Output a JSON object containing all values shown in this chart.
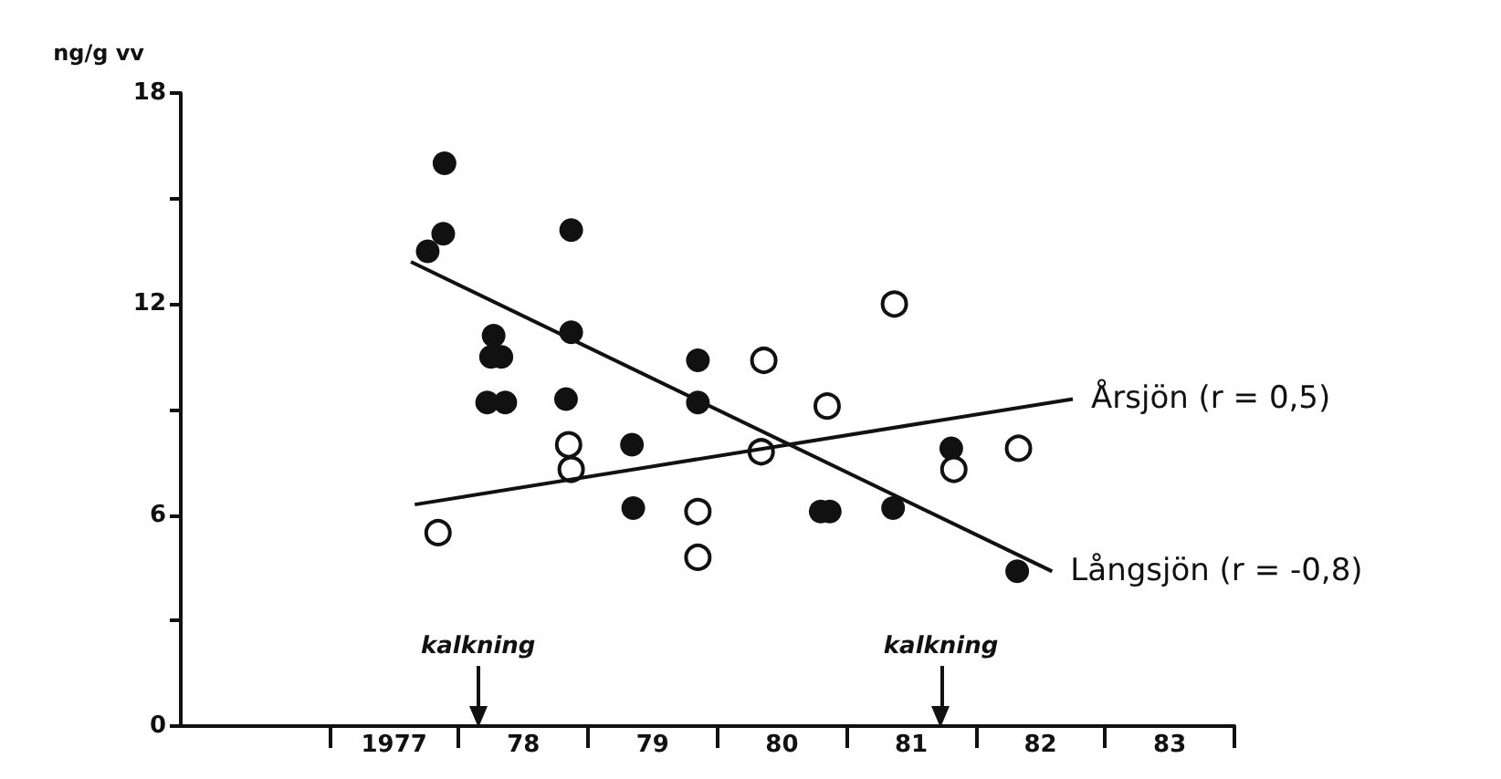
{
  "chart_data": {
    "type": "scatter",
    "ylabel": "ng/g vv",
    "xlim": [
      1975.35,
      1983.5
    ],
    "xticks": [
      {
        "value": 1976.5,
        "label": null
      },
      1977,
      {
        "value": 1977.5,
        "label": null
      },
      {
        "value": 1978,
        "label": "78"
      },
      {
        "value": 1978.5,
        "label": null
      },
      {
        "value": 1979,
        "label": "79"
      },
      {
        "value": 1979.5,
        "label": null
      },
      {
        "value": 1980,
        "label": "80"
      },
      {
        "value": 1980.5,
        "label": null
      },
      {
        "value": 1981,
        "label": "81"
      },
      {
        "value": 1981.5,
        "label": null
      },
      {
        "value": 1982,
        "label": "82"
      },
      {
        "value": 1982.5,
        "label": null
      },
      {
        "value": 1983,
        "label": "83"
      },
      {
        "value": 1983.5,
        "label": null
      }
    ],
    "ylim": [
      0,
      18
    ],
    "yticks": [
      0,
      {
        "value": 3,
        "label": null
      },
      6,
      {
        "value": 9,
        "label": null
      },
      12,
      {
        "value": 15,
        "label": null
      },
      18
    ],
    "grid": false,
    "legend": false,
    "ref_lines": [
      {
        "axis": "x",
        "value": 1977.65,
        "label": "kalkning"
      },
      {
        "axis": "x",
        "value": 1981.23,
        "label": "kalkning"
      }
    ],
    "series": [
      {
        "marker": "circle",
        "color": "#111111",
        "x": [
          1977.39,
          1977.38,
          1977.26,
          1978.37,
          1977.77,
          1977.75,
          1977.83,
          1978.37,
          1977.72,
          1977.86,
          1978.33,
          1978.84,
          1978.85,
          1979.35,
          1979.35,
          1980.3,
          1980.37,
          1980.86,
          1981.31,
          1981.82
        ],
        "values": [
          16.0,
          14.0,
          13.5,
          14.1,
          11.1,
          10.5,
          10.5,
          11.2,
          9.2,
          9.2,
          9.3,
          8.0,
          6.2,
          10.4,
          9.2,
          6.1,
          6.1,
          6.2,
          7.9,
          4.4
        ]
      },
      {
        "marker": "open circle",
        "color": "#111111",
        "x": [
          1977.34,
          1978.35,
          1978.37,
          1979.35,
          1979.35,
          1980.87,
          1979.86,
          1980.35,
          1979.84,
          1981.33,
          1981.83
        ],
        "values": [
          5.5,
          8.0,
          7.3,
          6.1,
          4.8,
          12.0,
          10.4,
          9.1,
          7.8,
          7.3,
          7.9
        ]
      },
      {
        "type": "line",
        "marker": "none",
        "name": "Långsjön (r = -0,8)",
        "color": "#111111",
        "x": [
          1977.13,
          1982.09
        ],
        "values": [
          13.2,
          4.4
        ]
      },
      {
        "type": "line",
        "marker": "none",
        "name": "Årsjön (r = 0,5)",
        "color": "#111111",
        "x": [
          1977.16,
          1982.25
        ],
        "values": [
          6.3,
          9.3
        ]
      }
    ]
  }
}
